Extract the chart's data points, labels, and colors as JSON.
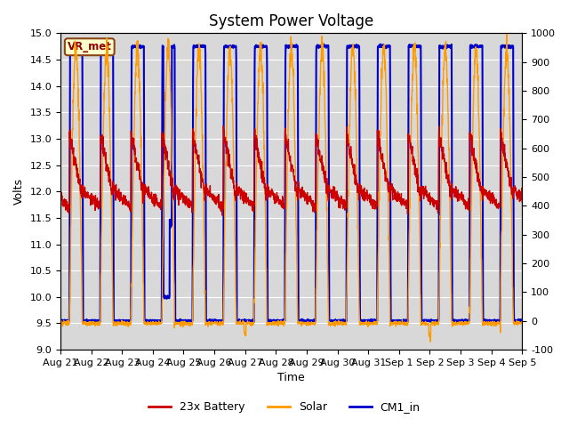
{
  "title": "System Power Voltage",
  "xlabel": "Time",
  "ylabel": "Volts",
  "ylim_left": [
    9.0,
    15.0
  ],
  "ylim_right": [
    -100,
    1000
  ],
  "yticks_left": [
    9.0,
    9.5,
    10.0,
    10.5,
    11.0,
    11.5,
    12.0,
    12.5,
    13.0,
    13.5,
    14.0,
    14.5,
    15.0
  ],
  "yticks_right": [
    -100,
    0,
    100,
    200,
    300,
    400,
    500,
    600,
    700,
    800,
    900,
    1000
  ],
  "xtick_labels": [
    "Aug 21",
    "Aug 22",
    "Aug 23",
    "Aug 24",
    "Aug 25",
    "Aug 26",
    "Aug 27",
    "Aug 28",
    "Aug 29",
    "Aug 30",
    "Aug 31",
    "Sep 1",
    "Sep 2",
    "Sep 3",
    "Sep 4",
    "Sep 5"
  ],
  "bg_color": "#d8d8d8",
  "fig_color": "#ffffff",
  "legend_items": [
    "23x Battery",
    "Solar",
    "CM1_in"
  ],
  "legend_colors": [
    "#cc0000",
    "#ff9900",
    "#0000cc"
  ],
  "vr_met_label": "VR_met",
  "line_colors": {
    "battery": "#cc0000",
    "solar": "#ff9900",
    "cm1": "#0000cc"
  },
  "line_widths": {
    "battery": 1.0,
    "solar": 1.0,
    "cm1": 1.5
  },
  "num_days": 15,
  "title_fontsize": 12,
  "axis_fontsize": 9,
  "tick_fontsize": 8,
  "legend_fontsize": 9
}
